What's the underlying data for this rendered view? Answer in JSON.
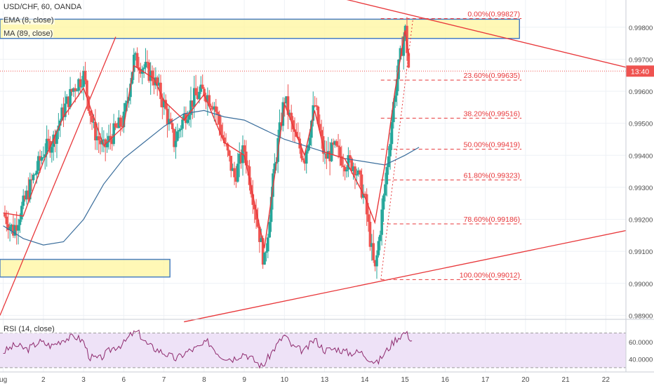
{
  "legend": {
    "symbol": "USD/CHF, 60, OANDA",
    "ema": "EMA (8, close)",
    "ma": "MA (89, close)",
    "rsi": "RSI (14, close)"
  },
  "price_tag": {
    "label": "13:40",
    "value": 0.99663
  },
  "colors": {
    "up": "#26a69a",
    "down": "#ef5350",
    "ema": "#e8373a",
    "ma": "#3b6e9c",
    "fib": "#e8373a",
    "zone_fill": "#fff59d",
    "zone_border": "#4a7fc1",
    "rsi_line": "#8e2a6e",
    "rsi_band": "#eee2f7"
  },
  "chart_data": [
    {
      "type": "candlestick",
      "symbol": "USD/CHF",
      "timeframe": "60",
      "y_ticks": [
        "0.99800",
        "0.99700",
        "0.99600",
        "0.99500",
        "0.99400",
        "0.99300",
        "0.99200",
        "0.99100",
        "0.99000",
        "0.98900"
      ],
      "y_tick_values": [
        0.998,
        0.997,
        0.996,
        0.995,
        0.994,
        0.993,
        0.992,
        0.991,
        0.99,
        0.989
      ],
      "ylim": [
        0.9889,
        0.99885
      ],
      "x_ticks": [
        "ug",
        "2",
        "3",
        "6",
        "7",
        "8",
        "9",
        "10",
        "13",
        "14",
        "15",
        "16",
        "17",
        "20",
        "21",
        "22"
      ],
      "x_tick_positions": [
        0,
        1,
        2,
        3,
        4,
        5,
        6,
        7,
        8,
        9,
        10,
        11,
        12,
        13,
        14,
        15
      ],
      "xlim": [
        -0.08,
        15.5
      ],
      "session_closes": [
        {
          "day": 0.0,
          "close": 0.99218
        },
        {
          "day": 0.25,
          "close": 0.99165
        },
        {
          "day": 0.5,
          "close": 0.99245
        },
        {
          "day": 0.75,
          "close": 0.9933
        },
        {
          "day": 1.0,
          "close": 0.9941
        },
        {
          "day": 1.25,
          "close": 0.9945
        },
        {
          "day": 1.5,
          "close": 0.9954
        },
        {
          "day": 1.75,
          "close": 0.9961
        },
        {
          "day": 2.0,
          "close": 0.9965
        },
        {
          "day": 2.25,
          "close": 0.9948
        },
        {
          "day": 2.5,
          "close": 0.9942
        },
        {
          "day": 2.75,
          "close": 0.9947
        },
        {
          "day": 3.0,
          "close": 0.9951
        },
        {
          "day": 3.25,
          "close": 0.997
        },
        {
          "day": 3.5,
          "close": 0.99675
        },
        {
          "day": 3.75,
          "close": 0.9964
        },
        {
          "day": 4.0,
          "close": 0.9956
        },
        {
          "day": 4.25,
          "close": 0.9944
        },
        {
          "day": 4.5,
          "close": 0.9952
        },
        {
          "day": 4.75,
          "close": 0.9958
        },
        {
          "day": 5.0,
          "close": 0.996
        },
        {
          "day": 5.25,
          "close": 0.9956
        },
        {
          "day": 5.5,
          "close": 0.9944
        },
        {
          "day": 5.75,
          "close": 0.9933
        },
        {
          "day": 6.0,
          "close": 0.9942
        },
        {
          "day": 6.25,
          "close": 0.9925
        },
        {
          "day": 6.5,
          "close": 0.9906
        },
        {
          "day": 6.75,
          "close": 0.9936
        },
        {
          "day": 7.0,
          "close": 0.9958
        },
        {
          "day": 7.25,
          "close": 0.9946
        },
        {
          "day": 7.5,
          "close": 0.9939
        },
        {
          "day": 7.75,
          "close": 0.9956
        },
        {
          "day": 8.0,
          "close": 0.9939
        },
        {
          "day": 8.25,
          "close": 0.9942
        },
        {
          "day": 8.5,
          "close": 0.9938
        },
        {
          "day": 8.75,
          "close": 0.9937
        },
        {
          "day": 9.0,
          "close": 0.9926
        },
        {
          "day": 9.25,
          "close": 0.9903
        },
        {
          "day": 9.5,
          "close": 0.993
        },
        {
          "day": 9.75,
          "close": 0.996
        },
        {
          "day": 10.0,
          "close": 0.998
        },
        {
          "day": 10.1,
          "close": 0.99663
        }
      ],
      "ema": [
        {
          "day": 0.0,
          "v": 0.9922
        },
        {
          "day": 0.5,
          "v": 0.9921
        },
        {
          "day": 1.0,
          "v": 0.9938
        },
        {
          "day": 1.5,
          "v": 0.9952
        },
        {
          "day": 2.0,
          "v": 0.9961
        },
        {
          "day": 2.5,
          "v": 0.9943
        },
        {
          "day": 3.0,
          "v": 0.9949
        },
        {
          "day": 3.25,
          "v": 0.9968
        },
        {
          "day": 3.75,
          "v": 0.9964
        },
        {
          "day": 4.0,
          "v": 0.9957
        },
        {
          "day": 4.5,
          "v": 0.9951
        },
        {
          "day": 5.0,
          "v": 0.9959
        },
        {
          "day": 5.5,
          "v": 0.9944
        },
        {
          "day": 6.0,
          "v": 0.994
        },
        {
          "day": 6.5,
          "v": 0.9911
        },
        {
          "day": 6.75,
          "v": 0.9933
        },
        {
          "day": 7.0,
          "v": 0.9956
        },
        {
          "day": 7.5,
          "v": 0.994
        },
        {
          "day": 7.75,
          "v": 0.9954
        },
        {
          "day": 8.0,
          "v": 0.9941
        },
        {
          "day": 8.5,
          "v": 0.9939
        },
        {
          "day": 9.0,
          "v": 0.9927
        },
        {
          "day": 9.25,
          "v": 0.9919
        },
        {
          "day": 9.5,
          "v": 0.9937
        },
        {
          "day": 9.75,
          "v": 0.996
        },
        {
          "day": 10.0,
          "v": 0.9979
        },
        {
          "day": 10.1,
          "v": 0.9971
        }
      ],
      "ma": [
        {
          "day": 0.0,
          "v": 0.9918
        },
        {
          "day": 0.5,
          "v": 0.9914
        },
        {
          "day": 1.0,
          "v": 0.9912
        },
        {
          "day": 1.5,
          "v": 0.9913
        },
        {
          "day": 2.0,
          "v": 0.992
        },
        {
          "day": 2.5,
          "v": 0.9931
        },
        {
          "day": 3.0,
          "v": 0.9939
        },
        {
          "day": 3.5,
          "v": 0.9944
        },
        {
          "day": 4.0,
          "v": 0.9949
        },
        {
          "day": 4.5,
          "v": 0.9953
        },
        {
          "day": 5.0,
          "v": 0.9954
        },
        {
          "day": 5.5,
          "v": 0.9952
        },
        {
          "day": 6.0,
          "v": 0.9951
        },
        {
          "day": 6.5,
          "v": 0.9948
        },
        {
          "day": 7.0,
          "v": 0.9945
        },
        {
          "day": 7.5,
          "v": 0.9943
        },
        {
          "day": 8.0,
          "v": 0.9941
        },
        {
          "day": 8.5,
          "v": 0.9939
        },
        {
          "day": 9.0,
          "v": 0.9938
        },
        {
          "day": 9.5,
          "v": 0.9937
        },
        {
          "day": 10.0,
          "v": 0.994
        },
        {
          "day": 10.35,
          "v": 0.99425
        }
      ],
      "fib_levels": [
        {
          "label": "0.00%(0.99827)",
          "value": 0.99827
        },
        {
          "label": "23.60%(0.99635)",
          "value": 0.99635
        },
        {
          "label": "38.20%(0.99516)",
          "value": 0.99516
        },
        {
          "label": "50.00%(0.99419)",
          "value": 0.99419
        },
        {
          "label": "61.80%(0.99323)",
          "value": 0.99323
        },
        {
          "label": "78.60%(0.99186)",
          "value": 0.99186
        },
        {
          "label": "100.00%(0.99012)",
          "value": 0.99012
        }
      ],
      "fib_x_range": [
        9.4,
        12.9
      ],
      "zones": [
        {
          "x": [
            -0.08,
            12.85
          ],
          "y": [
            0.99765,
            0.99825
          ]
        },
        {
          "x": [
            -0.08,
            4.15
          ],
          "y": [
            0.9902,
            0.99075
          ]
        }
      ],
      "trendlines": [
        {
          "x": [
            8.1,
            15.5
          ],
          "y": [
            0.999,
            0.99675
          ]
        },
        {
          "x": [
            4.5,
            15.5
          ],
          "y": [
            0.9888,
            0.99165
          ]
        },
        {
          "x": [
            -0.08,
            2.8
          ],
          "y": [
            0.989,
            0.9977
          ]
        }
      ]
    },
    {
      "type": "line",
      "name": "RSI (14, close)",
      "y_ticks": [
        "60.0000",
        "40.0000"
      ],
      "y_tick_values": [
        60,
        40
      ],
      "ylim": [
        25,
        85
      ],
      "band": [
        30,
        70
      ],
      "values": [
        {
          "day": 0.0,
          "v": 48
        },
        {
          "day": 0.3,
          "v": 56
        },
        {
          "day": 0.6,
          "v": 51
        },
        {
          "day": 0.9,
          "v": 60
        },
        {
          "day": 1.2,
          "v": 55
        },
        {
          "day": 1.5,
          "v": 63
        },
        {
          "day": 1.8,
          "v": 66
        },
        {
          "day": 2.0,
          "v": 60
        },
        {
          "day": 2.15,
          "v": 42
        },
        {
          "day": 2.4,
          "v": 40
        },
        {
          "day": 2.7,
          "v": 52
        },
        {
          "day": 3.0,
          "v": 58
        },
        {
          "day": 3.2,
          "v": 69
        },
        {
          "day": 3.35,
          "v": 71
        },
        {
          "day": 3.6,
          "v": 56
        },
        {
          "day": 4.0,
          "v": 47
        },
        {
          "day": 4.3,
          "v": 40
        },
        {
          "day": 4.6,
          "v": 49
        },
        {
          "day": 4.9,
          "v": 54
        },
        {
          "day": 5.1,
          "v": 60
        },
        {
          "day": 5.4,
          "v": 44
        },
        {
          "day": 5.7,
          "v": 40
        },
        {
          "day": 6.0,
          "v": 47
        },
        {
          "day": 6.2,
          "v": 40
        },
        {
          "day": 6.45,
          "v": 31
        },
        {
          "day": 6.7,
          "v": 49
        },
        {
          "day": 7.0,
          "v": 68
        },
        {
          "day": 7.2,
          "v": 54
        },
        {
          "day": 7.5,
          "v": 49
        },
        {
          "day": 7.75,
          "v": 63
        },
        {
          "day": 8.0,
          "v": 50
        },
        {
          "day": 8.3,
          "v": 52
        },
        {
          "day": 8.6,
          "v": 47
        },
        {
          "day": 8.9,
          "v": 48
        },
        {
          "day": 9.1,
          "v": 41
        },
        {
          "day": 9.3,
          "v": 35
        },
        {
          "day": 9.5,
          "v": 47
        },
        {
          "day": 9.75,
          "v": 62
        },
        {
          "day": 10.0,
          "v": 71
        },
        {
          "day": 10.1,
          "v": 66
        },
        {
          "day": 10.2,
          "v": 60
        }
      ]
    }
  ]
}
